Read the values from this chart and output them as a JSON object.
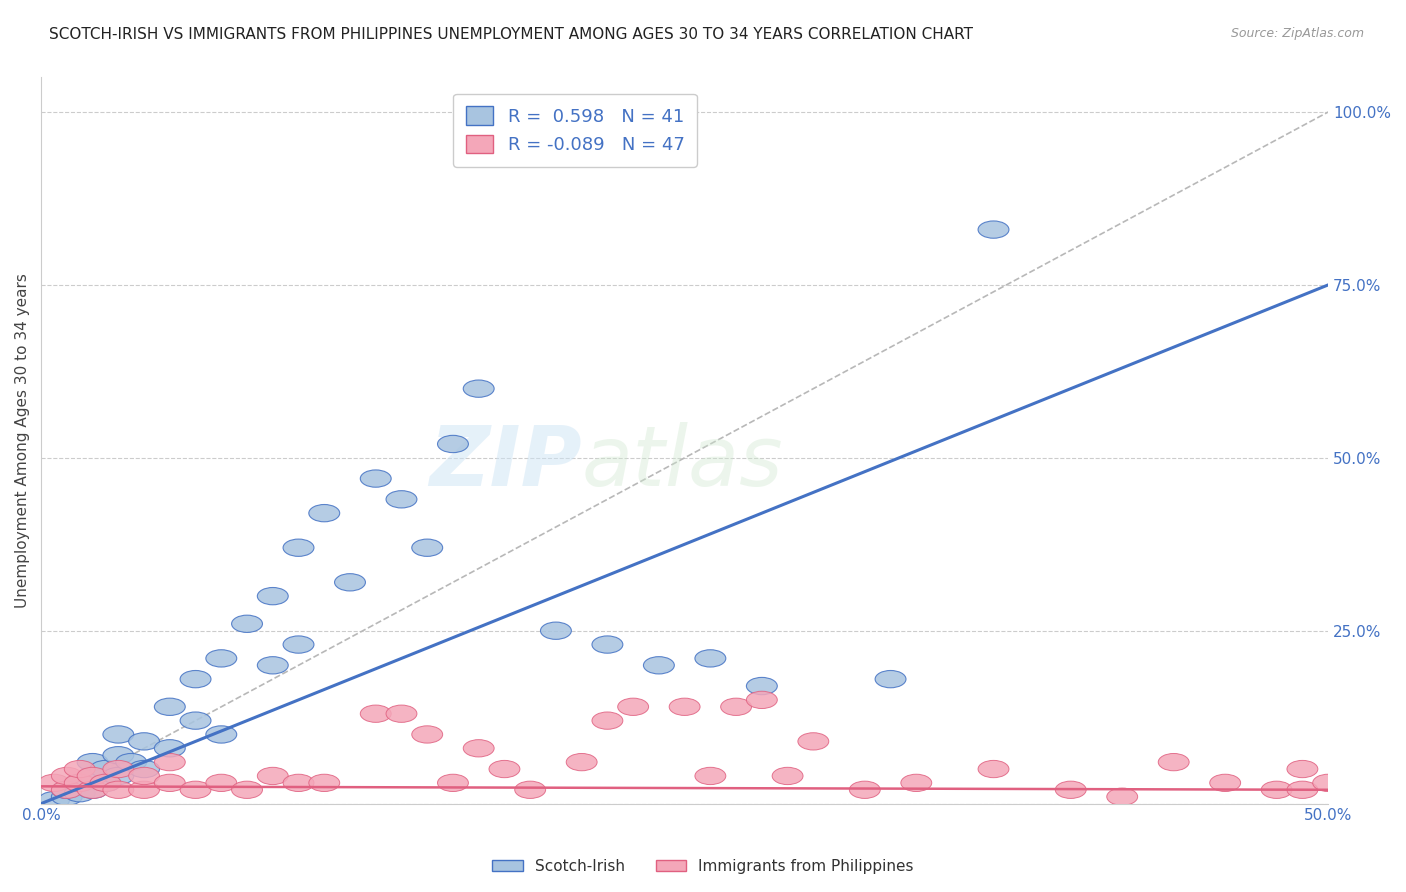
{
  "title": "SCOTCH-IRISH VS IMMIGRANTS FROM PHILIPPINES UNEMPLOYMENT AMONG AGES 30 TO 34 YEARS CORRELATION CHART",
  "source": "Source: ZipAtlas.com",
  "ylabel": "Unemployment Among Ages 30 to 34 years",
  "xlim": [
    0.0,
    0.5
  ],
  "ylim": [
    0.0,
    1.05
  ],
  "xticks": [
    0.0,
    0.1,
    0.2,
    0.3,
    0.4,
    0.5
  ],
  "xticklabels": [
    "0.0%",
    "",
    "",
    "",
    "",
    "50.0%"
  ],
  "yticks": [
    0.0,
    0.25,
    0.5,
    0.75,
    1.0
  ],
  "yticklabels": [
    "",
    "25.0%",
    "50.0%",
    "75.0%",
    "100.0%"
  ],
  "blue_R": 0.598,
  "blue_N": 41,
  "pink_R": -0.089,
  "pink_N": 47,
  "blue_color": "#a8c4e0",
  "pink_color": "#f4a7b9",
  "blue_line_color": "#4472c4",
  "pink_line_color": "#e06080",
  "diag_line_color": "#b8b8b8",
  "watermark": "ZIPatlas",
  "legend_label_blue": "Scotch-Irish",
  "legend_label_pink": "Immigrants from Philippines",
  "blue_line_x0": 0.0,
  "blue_line_y0": 0.0,
  "blue_line_x1": 0.5,
  "blue_line_y1": 0.75,
  "pink_line_x0": 0.0,
  "pink_line_y0": 0.025,
  "pink_line_x1": 0.5,
  "pink_line_y1": 0.02,
  "blue_scatter_x": [
    0.005,
    0.01,
    0.01,
    0.015,
    0.015,
    0.02,
    0.02,
    0.02,
    0.025,
    0.025,
    0.03,
    0.03,
    0.03,
    0.035,
    0.04,
    0.04,
    0.05,
    0.05,
    0.06,
    0.06,
    0.07,
    0.07,
    0.08,
    0.09,
    0.09,
    0.1,
    0.1,
    0.11,
    0.12,
    0.13,
    0.14,
    0.15,
    0.16,
    0.17,
    0.2,
    0.22,
    0.24,
    0.26,
    0.28,
    0.33,
    0.37
  ],
  "blue_scatter_y": [
    0.005,
    0.01,
    0.02,
    0.015,
    0.03,
    0.02,
    0.04,
    0.06,
    0.03,
    0.05,
    0.04,
    0.07,
    0.1,
    0.06,
    0.05,
    0.09,
    0.08,
    0.14,
    0.12,
    0.18,
    0.1,
    0.21,
    0.26,
    0.2,
    0.3,
    0.23,
    0.37,
    0.42,
    0.32,
    0.47,
    0.44,
    0.37,
    0.52,
    0.6,
    0.25,
    0.23,
    0.2,
    0.21,
    0.17,
    0.18,
    0.83
  ],
  "pink_scatter_x": [
    0.005,
    0.01,
    0.01,
    0.015,
    0.015,
    0.02,
    0.02,
    0.025,
    0.03,
    0.03,
    0.04,
    0.04,
    0.05,
    0.05,
    0.06,
    0.07,
    0.08,
    0.09,
    0.1,
    0.11,
    0.13,
    0.14,
    0.15,
    0.16,
    0.17,
    0.18,
    0.19,
    0.21,
    0.22,
    0.23,
    0.25,
    0.26,
    0.27,
    0.28,
    0.29,
    0.3,
    0.32,
    0.34,
    0.37,
    0.4,
    0.42,
    0.44,
    0.46,
    0.48,
    0.49,
    0.49,
    0.5
  ],
  "pink_scatter_y": [
    0.03,
    0.02,
    0.04,
    0.03,
    0.05,
    0.02,
    0.04,
    0.03,
    0.02,
    0.05,
    0.02,
    0.04,
    0.03,
    0.06,
    0.02,
    0.03,
    0.02,
    0.04,
    0.03,
    0.03,
    0.13,
    0.13,
    0.1,
    0.03,
    0.08,
    0.05,
    0.02,
    0.06,
    0.12,
    0.14,
    0.14,
    0.04,
    0.14,
    0.15,
    0.04,
    0.09,
    0.02,
    0.03,
    0.05,
    0.02,
    0.01,
    0.06,
    0.03,
    0.02,
    0.05,
    0.02,
    0.03
  ]
}
